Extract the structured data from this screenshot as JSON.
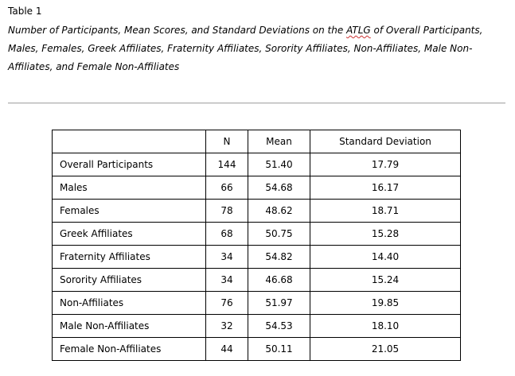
{
  "table": {
    "label": "Table 1",
    "caption_before": "Number of Participants, Mean Scores, and Standard Deviations on the ",
    "caption_abbr": "ATLG",
    "caption_after": " of Overall Participants, Males, Females, Greek Affiliates, Fraternity Affiliates, Sorority Affiliates, Non-Affiliates, Male Non-Affiliates, and Female Non-Affiliates",
    "headers": [
      "",
      "N",
      "Mean",
      "Standard Deviation"
    ],
    "rows": [
      {
        "group": "Overall Participants",
        "n": "144",
        "mean": "51.40",
        "sd": "17.79"
      },
      {
        "group": "Males",
        "n": "66",
        "mean": "54.68",
        "sd": "16.17"
      },
      {
        "group": "Females",
        "n": "78",
        "mean": "48.62",
        "sd": "18.71"
      },
      {
        "group": "Greek Affiliates",
        "n": "68",
        "mean": "50.75",
        "sd": "15.28"
      },
      {
        "group": "Fraternity Affiliates",
        "n": "34",
        "mean": "54.82",
        "sd": "14.40"
      },
      {
        "group": "Sorority Affiliates",
        "n": "34",
        "mean": "46.68",
        "sd": "15.24"
      },
      {
        "group": "Non-Affiliates",
        "n": "76",
        "mean": "51.97",
        "sd": "19.85"
      },
      {
        "group": "Male Non-Affiliates",
        "n": "32",
        "mean": "54.53",
        "sd": "18.10"
      },
      {
        "group": "Female Non-Affiliates",
        "n": "44",
        "mean": "50.11",
        "sd": "21.05"
      }
    ]
  }
}
